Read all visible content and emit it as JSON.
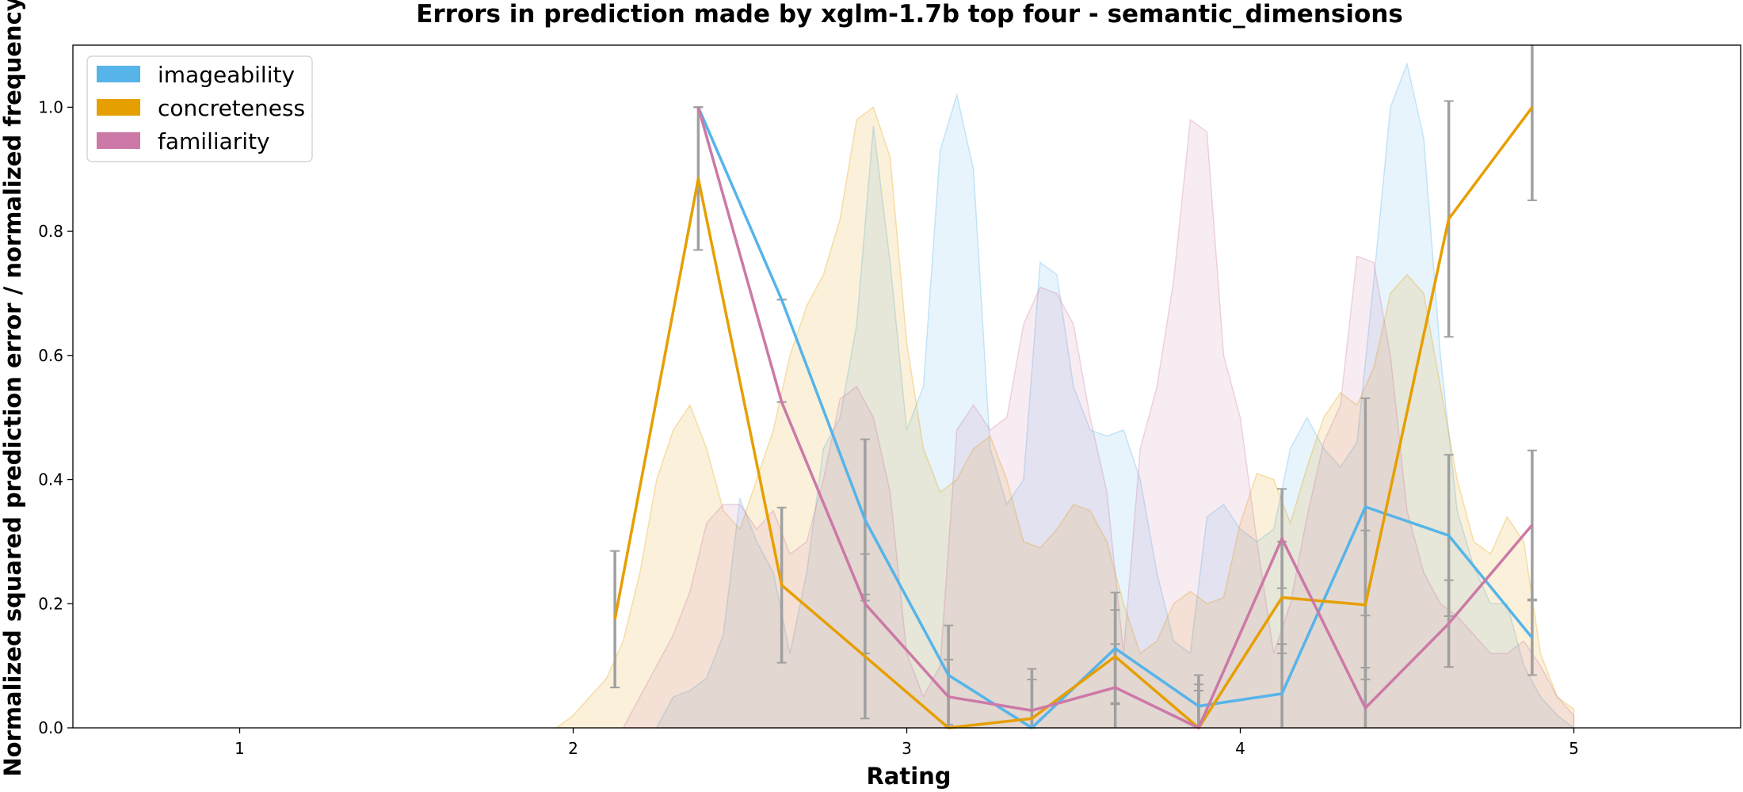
{
  "chart_data": {
    "type": "line",
    "title": "Errors in prediction made by xglm-1.7b top four - semantic_dimensions",
    "xlabel": "Rating",
    "ylabel": "Normalized squared prediction error / normalized frequency",
    "xlim": [
      0.5,
      5.5
    ],
    "ylim": [
      0,
      1.1
    ],
    "xticks": [
      1,
      2,
      3,
      4,
      5
    ],
    "yticks": [
      0.0,
      0.2,
      0.4,
      0.6,
      0.8,
      1.0
    ],
    "xtick_labels": [
      "1",
      "2",
      "3",
      "4",
      "5"
    ],
    "ytick_labels": [
      "0.0",
      "0.2",
      "0.4",
      "0.6",
      "0.8",
      "1.0"
    ],
    "grid": false,
    "legend_position": "top-left",
    "series": [
      {
        "name": "imageability",
        "color": "#56b4e9",
        "x": [
          2.375,
          2.625,
          2.875,
          3.125,
          3.375,
          3.625,
          3.875,
          4.125,
          4.375,
          4.625,
          4.875
        ],
        "y": [
          1.0,
          0.69,
          0.335,
          0.085,
          0.0,
          0.128,
          0.035,
          0.055,
          0.356,
          0.31,
          0.145
        ],
        "err": [
          0.0,
          0.0,
          0.13,
          0.08,
          0.0,
          0.09,
          0.05,
          0.08,
          0.175,
          0.13,
          0.06
        ],
        "density_x": [
          2.25,
          2.3,
          2.35,
          2.4,
          2.45,
          2.5,
          2.55,
          2.6,
          2.65,
          2.7,
          2.75,
          2.8,
          2.85,
          2.9,
          2.95,
          3.0,
          3.05,
          3.1,
          3.15,
          3.2,
          3.25,
          3.3,
          3.35,
          3.4,
          3.45,
          3.5,
          3.55,
          3.6,
          3.65,
          3.7,
          3.75,
          3.8,
          3.85,
          3.9,
          3.95,
          4.0,
          4.05,
          4.1,
          4.15,
          4.2,
          4.25,
          4.3,
          4.35,
          4.4,
          4.45,
          4.5,
          4.55,
          4.6,
          4.65,
          4.7,
          4.75,
          4.8,
          4.85,
          4.9,
          4.95,
          5.0
        ],
        "density_y": [
          0.0,
          0.05,
          0.06,
          0.08,
          0.15,
          0.37,
          0.3,
          0.25,
          0.12,
          0.25,
          0.45,
          0.5,
          0.65,
          0.97,
          0.75,
          0.48,
          0.55,
          0.93,
          1.02,
          0.9,
          0.45,
          0.36,
          0.4,
          0.75,
          0.73,
          0.55,
          0.48,
          0.47,
          0.48,
          0.4,
          0.25,
          0.14,
          0.12,
          0.34,
          0.36,
          0.32,
          0.3,
          0.32,
          0.45,
          0.5,
          0.45,
          0.42,
          0.46,
          0.72,
          1.0,
          1.07,
          0.95,
          0.6,
          0.35,
          0.26,
          0.2,
          0.2,
          0.1,
          0.05,
          0.02,
          0.0
        ]
      },
      {
        "name": "concreteness",
        "color": "#e69f00",
        "x": [
          2.125,
          2.375,
          2.625,
          2.875,
          3.125,
          3.375,
          3.625,
          3.875,
          4.125,
          4.375,
          4.625,
          4.875
        ],
        "y": [
          0.175,
          0.885,
          0.23,
          0.115,
          0.0,
          0.015,
          0.115,
          0.0,
          0.21,
          0.198,
          0.82,
          1.0
        ],
        "err": [
          0.11,
          0.115,
          0.125,
          0.1,
          0.0,
          0.08,
          0.075,
          0.07,
          0.09,
          0.12,
          0.19,
          0.15
        ],
        "density_x": [
          1.95,
          2.0,
          2.05,
          2.1,
          2.15,
          2.2,
          2.25,
          2.3,
          2.35,
          2.4,
          2.45,
          2.5,
          2.55,
          2.6,
          2.65,
          2.7,
          2.75,
          2.8,
          2.85,
          2.9,
          2.95,
          3.0,
          3.05,
          3.1,
          3.15,
          3.2,
          3.25,
          3.3,
          3.35,
          3.4,
          3.45,
          3.5,
          3.55,
          3.6,
          3.65,
          3.7,
          3.75,
          3.8,
          3.85,
          3.9,
          3.95,
          4.0,
          4.05,
          4.1,
          4.15,
          4.2,
          4.25,
          4.3,
          4.35,
          4.4,
          4.45,
          4.5,
          4.55,
          4.6,
          4.65,
          4.7,
          4.75,
          4.8,
          4.85,
          4.9,
          4.95,
          5.0
        ],
        "density_y": [
          0.0,
          0.02,
          0.05,
          0.08,
          0.14,
          0.25,
          0.4,
          0.48,
          0.52,
          0.45,
          0.35,
          0.32,
          0.4,
          0.48,
          0.6,
          0.68,
          0.73,
          0.82,
          0.98,
          1.0,
          0.92,
          0.62,
          0.45,
          0.38,
          0.4,
          0.45,
          0.47,
          0.4,
          0.3,
          0.29,
          0.32,
          0.36,
          0.35,
          0.3,
          0.2,
          0.12,
          0.14,
          0.2,
          0.22,
          0.2,
          0.21,
          0.33,
          0.41,
          0.4,
          0.33,
          0.42,
          0.5,
          0.54,
          0.52,
          0.58,
          0.7,
          0.73,
          0.7,
          0.55,
          0.4,
          0.3,
          0.28,
          0.34,
          0.3,
          0.12,
          0.05,
          0.03
        ]
      },
      {
        "name": "familiarity",
        "color": "#cc79a7",
        "x": [
          2.375,
          2.625,
          2.875,
          3.125,
          3.375,
          3.625,
          3.875,
          4.125,
          4.375,
          4.625,
          4.875
        ],
        "y": [
          1.0,
          0.525,
          0.2,
          0.05,
          0.028,
          0.065,
          0.0,
          0.305,
          0.032,
          0.168,
          0.327
        ],
        "err": [
          0.0,
          0.0,
          0.08,
          0.06,
          0.05,
          0.07,
          0.06,
          0.08,
          0.065,
          0.07,
          0.12
        ],
        "density_x": [
          2.15,
          2.2,
          2.25,
          2.3,
          2.35,
          2.4,
          2.45,
          2.5,
          2.55,
          2.6,
          2.65,
          2.7,
          2.75,
          2.8,
          2.85,
          2.9,
          2.95,
          3.0,
          3.05,
          3.1,
          3.15,
          3.2,
          3.25,
          3.3,
          3.35,
          3.4,
          3.45,
          3.5,
          3.55,
          3.6,
          3.65,
          3.7,
          3.75,
          3.8,
          3.85,
          3.9,
          3.95,
          4.0,
          4.05,
          4.1,
          4.15,
          4.2,
          4.25,
          4.3,
          4.35,
          4.4,
          4.45,
          4.5,
          4.55,
          4.6,
          4.65,
          4.7,
          4.75,
          4.8,
          4.85,
          4.9,
          4.95,
          5.0
        ],
        "density_y": [
          0.0,
          0.05,
          0.1,
          0.15,
          0.22,
          0.33,
          0.36,
          0.36,
          0.32,
          0.35,
          0.28,
          0.3,
          0.4,
          0.53,
          0.55,
          0.5,
          0.38,
          0.12,
          0.05,
          0.1,
          0.48,
          0.52,
          0.48,
          0.5,
          0.65,
          0.71,
          0.7,
          0.65,
          0.5,
          0.38,
          0.12,
          0.45,
          0.55,
          0.72,
          0.98,
          0.96,
          0.6,
          0.5,
          0.3,
          0.12,
          0.2,
          0.34,
          0.46,
          0.52,
          0.76,
          0.75,
          0.6,
          0.35,
          0.25,
          0.2,
          0.18,
          0.15,
          0.12,
          0.12,
          0.14,
          0.1,
          0.05,
          0.02
        ]
      }
    ]
  }
}
